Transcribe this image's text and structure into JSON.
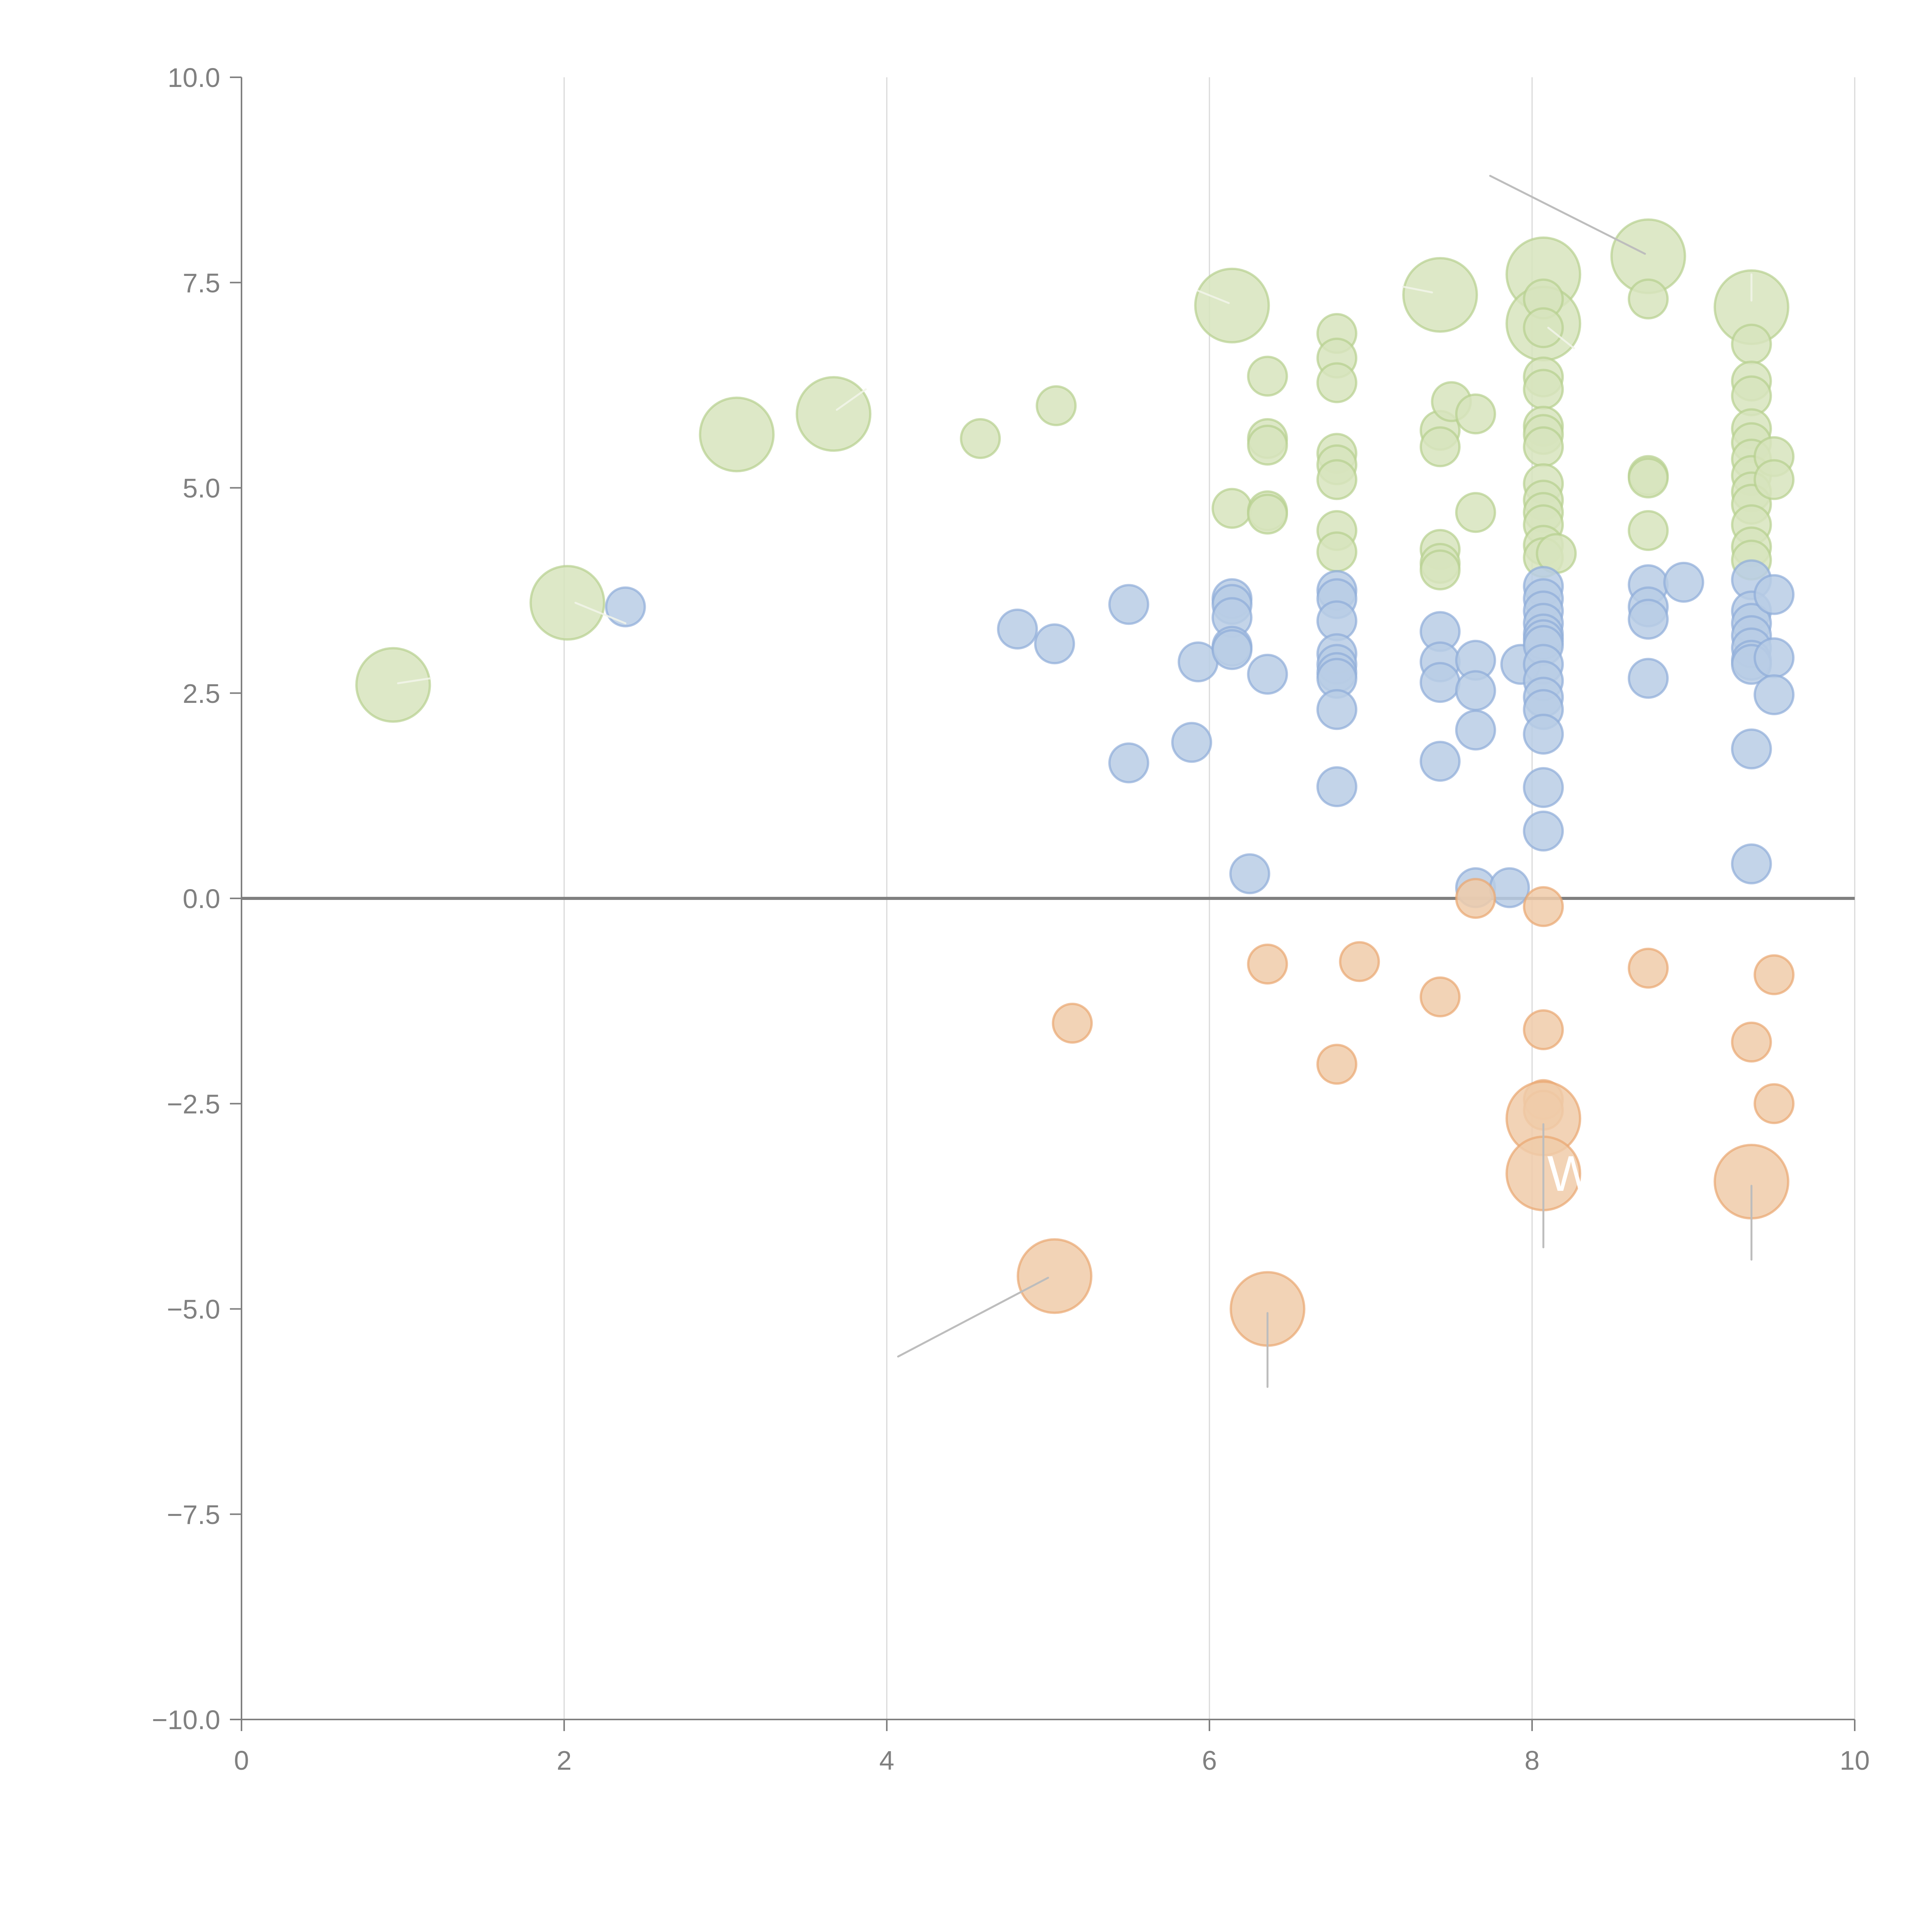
{
  "chart_data": {
    "type": "scatter",
    "subtype": "bubble",
    "title": "",
    "xlabel": "",
    "ylabel": "",
    "xlim": [
      0,
      10
    ],
    "ylim": [
      -10,
      10
    ],
    "x_ticks": [
      "0",
      "2",
      "4",
      "6",
      "8",
      "10"
    ],
    "y_ticks": [
      "10.0",
      "7.5",
      "5.0",
      "2.5",
      "0.0",
      "−2.5",
      "−5.0",
      "−7.5",
      "−10.0"
    ],
    "x_tick_values": [
      0,
      2,
      4,
      6,
      8,
      10
    ],
    "y_tick_values": [
      10,
      7.5,
      5,
      2.5,
      0,
      -2.5,
      -5,
      -7.5,
      -10
    ],
    "grid": "vertical",
    "zero_line": true,
    "legend": "none",
    "series": [
      {
        "name": "green",
        "color": "#9bbb59",
        "points": [
          {
            "x": 0.94,
            "y": 2.6,
            "size": "large"
          },
          {
            "x": 2.02,
            "y": 3.6,
            "size": "large"
          },
          {
            "x": 3.07,
            "y": 5.65,
            "size": "large"
          },
          {
            "x": 3.67,
            "y": 5.9,
            "size": "large"
          },
          {
            "x": 4.58,
            "y": 5.6,
            "size": "small"
          },
          {
            "x": 5.05,
            "y": 6.0,
            "size": "small"
          },
          {
            "x": 6.14,
            "y": 7.22,
            "size": "large"
          },
          {
            "x": 6.14,
            "y": 4.75,
            "size": "small"
          },
          {
            "x": 6.36,
            "y": 6.36,
            "size": "small"
          },
          {
            "x": 6.36,
            "y": 5.6,
            "size": "small"
          },
          {
            "x": 6.36,
            "y": 5.52,
            "size": "small"
          },
          {
            "x": 6.36,
            "y": 4.72,
            "size": "small"
          },
          {
            "x": 6.36,
            "y": 4.68,
            "size": "small"
          },
          {
            "x": 6.79,
            "y": 6.88,
            "size": "small"
          },
          {
            "x": 6.79,
            "y": 6.58,
            "size": "small"
          },
          {
            "x": 6.79,
            "y": 6.28,
            "size": "small"
          },
          {
            "x": 6.79,
            "y": 5.42,
            "size": "small"
          },
          {
            "x": 6.79,
            "y": 5.28,
            "size": "small"
          },
          {
            "x": 6.79,
            "y": 5.1,
            "size": "small"
          },
          {
            "x": 6.79,
            "y": 4.48,
            "size": "small"
          },
          {
            "x": 6.79,
            "y": 4.22,
            "size": "small"
          },
          {
            "x": 7.43,
            "y": 7.35,
            "size": "large"
          },
          {
            "x": 7.43,
            "y": 5.7,
            "size": "small"
          },
          {
            "x": 7.43,
            "y": 5.5,
            "size": "small"
          },
          {
            "x": 7.43,
            "y": 4.25,
            "size": "small"
          },
          {
            "x": 7.43,
            "y": 4.08,
            "size": "small"
          },
          {
            "x": 7.43,
            "y": 4.0,
            "size": "small"
          },
          {
            "x": 7.5,
            "y": 6.05,
            "size": "small"
          },
          {
            "x": 7.65,
            "y": 5.9,
            "size": "small"
          },
          {
            "x": 7.65,
            "y": 4.7,
            "size": "small"
          },
          {
            "x": 8.07,
            "y": 7.6,
            "size": "large"
          },
          {
            "x": 8.07,
            "y": 7.0,
            "size": "large"
          },
          {
            "x": 8.07,
            "y": 7.3,
            "size": "small"
          },
          {
            "x": 8.07,
            "y": 6.95,
            "size": "small"
          },
          {
            "x": 8.07,
            "y": 6.35,
            "size": "small"
          },
          {
            "x": 8.07,
            "y": 6.2,
            "size": "small"
          },
          {
            "x": 8.07,
            "y": 5.75,
            "size": "small"
          },
          {
            "x": 8.07,
            "y": 5.65,
            "size": "small"
          },
          {
            "x": 8.07,
            "y": 5.5,
            "size": "small"
          },
          {
            "x": 8.07,
            "y": 5.05,
            "size": "small"
          },
          {
            "x": 8.07,
            "y": 4.85,
            "size": "small"
          },
          {
            "x": 8.07,
            "y": 4.7,
            "size": "small"
          },
          {
            "x": 8.07,
            "y": 4.55,
            "size": "small"
          },
          {
            "x": 8.07,
            "y": 4.3,
            "size": "small"
          },
          {
            "x": 8.07,
            "y": 4.15,
            "size": "small"
          },
          {
            "x": 8.15,
            "y": 4.2,
            "size": "small"
          },
          {
            "x": 8.72,
            "y": 7.82,
            "size": "large"
          },
          {
            "x": 8.72,
            "y": 7.3,
            "size": "small"
          },
          {
            "x": 8.72,
            "y": 5.15,
            "size": "small"
          },
          {
            "x": 8.72,
            "y": 5.12,
            "size": "small"
          },
          {
            "x": 8.72,
            "y": 4.48,
            "size": "small"
          },
          {
            "x": 9.36,
            "y": 7.2,
            "size": "large"
          },
          {
            "x": 9.36,
            "y": 6.75,
            "size": "small"
          },
          {
            "x": 9.36,
            "y": 6.3,
            "size": "small"
          },
          {
            "x": 9.36,
            "y": 6.12,
            "size": "small"
          },
          {
            "x": 9.36,
            "y": 5.72,
            "size": "small"
          },
          {
            "x": 9.36,
            "y": 5.55,
            "size": "small"
          },
          {
            "x": 9.36,
            "y": 5.35,
            "size": "small"
          },
          {
            "x": 9.36,
            "y": 5.15,
            "size": "small"
          },
          {
            "x": 9.36,
            "y": 4.95,
            "size": "small"
          },
          {
            "x": 9.36,
            "y": 4.8,
            "size": "small"
          },
          {
            "x": 9.36,
            "y": 4.55,
            "size": "small"
          },
          {
            "x": 9.36,
            "y": 4.28,
            "size": "small"
          },
          {
            "x": 9.36,
            "y": 4.12,
            "size": "small"
          },
          {
            "x": 9.5,
            "y": 5.38,
            "size": "small"
          },
          {
            "x": 9.5,
            "y": 5.1,
            "size": "small"
          }
        ]
      },
      {
        "name": "blue",
        "color": "#4f81bd",
        "points": [
          {
            "x": 2.38,
            "y": 3.55,
            "size": "small"
          },
          {
            "x": 4.81,
            "y": 3.28,
            "size": "small"
          },
          {
            "x": 5.04,
            "y": 3.1,
            "size": "small"
          },
          {
            "x": 5.5,
            "y": 3.58,
            "size": "small"
          },
          {
            "x": 5.5,
            "y": 1.65,
            "size": "small"
          },
          {
            "x": 5.89,
            "y": 1.9,
            "size": "small"
          },
          {
            "x": 5.93,
            "y": 2.88,
            "size": "small"
          },
          {
            "x": 6.14,
            "y": 3.65,
            "size": "small"
          },
          {
            "x": 6.14,
            "y": 3.58,
            "size": "small"
          },
          {
            "x": 6.14,
            "y": 3.42,
            "size": "small"
          },
          {
            "x": 6.14,
            "y": 3.07,
            "size": "small"
          },
          {
            "x": 6.14,
            "y": 3.03,
            "size": "small"
          },
          {
            "x": 6.25,
            "y": 0.3,
            "size": "small"
          },
          {
            "x": 6.36,
            "y": 2.73,
            "size": "small"
          },
          {
            "x": 6.79,
            "y": 3.75,
            "size": "small"
          },
          {
            "x": 6.79,
            "y": 3.65,
            "size": "small"
          },
          {
            "x": 6.79,
            "y": 3.38,
            "size": "small"
          },
          {
            "x": 6.79,
            "y": 2.98,
            "size": "small"
          },
          {
            "x": 6.79,
            "y": 2.85,
            "size": "small"
          },
          {
            "x": 6.79,
            "y": 2.75,
            "size": "small"
          },
          {
            "x": 6.79,
            "y": 2.68,
            "size": "small"
          },
          {
            "x": 6.79,
            "y": 2.3,
            "size": "small"
          },
          {
            "x": 6.79,
            "y": 1.36,
            "size": "small"
          },
          {
            "x": 7.43,
            "y": 3.25,
            "size": "small"
          },
          {
            "x": 7.43,
            "y": 2.88,
            "size": "small"
          },
          {
            "x": 7.43,
            "y": 2.63,
            "size": "small"
          },
          {
            "x": 7.43,
            "y": 1.67,
            "size": "small"
          },
          {
            "x": 7.65,
            "y": 2.9,
            "size": "small"
          },
          {
            "x": 7.65,
            "y": 2.53,
            "size": "small"
          },
          {
            "x": 7.65,
            "y": 2.05,
            "size": "small"
          },
          {
            "x": 7.65,
            "y": 0.13,
            "size": "small"
          },
          {
            "x": 7.86,
            "y": 0.13,
            "size": "small"
          },
          {
            "x": 7.93,
            "y": 2.85,
            "size": "small"
          },
          {
            "x": 8.07,
            "y": 3.8,
            "size": "small"
          },
          {
            "x": 8.07,
            "y": 3.65,
            "size": "small"
          },
          {
            "x": 8.07,
            "y": 3.5,
            "size": "small"
          },
          {
            "x": 8.07,
            "y": 3.35,
            "size": "small"
          },
          {
            "x": 8.07,
            "y": 3.22,
            "size": "small"
          },
          {
            "x": 8.07,
            "y": 3.15,
            "size": "small"
          },
          {
            "x": 8.07,
            "y": 3.08,
            "size": "small"
          },
          {
            "x": 8.07,
            "y": 2.85,
            "size": "small"
          },
          {
            "x": 8.07,
            "y": 2.65,
            "size": "small"
          },
          {
            "x": 8.07,
            "y": 2.45,
            "size": "small"
          },
          {
            "x": 8.07,
            "y": 2.3,
            "size": "small"
          },
          {
            "x": 8.07,
            "y": 2.0,
            "size": "small"
          },
          {
            "x": 8.07,
            "y": 1.35,
            "size": "small"
          },
          {
            "x": 8.07,
            "y": 0.82,
            "size": "small"
          },
          {
            "x": 8.72,
            "y": 3.82,
            "size": "small"
          },
          {
            "x": 8.72,
            "y": 3.55,
            "size": "small"
          },
          {
            "x": 8.72,
            "y": 3.4,
            "size": "small"
          },
          {
            "x": 8.72,
            "y": 2.68,
            "size": "small"
          },
          {
            "x": 8.94,
            "y": 3.85,
            "size": "small"
          },
          {
            "x": 9.36,
            "y": 3.88,
            "size": "small"
          },
          {
            "x": 9.36,
            "y": 3.5,
            "size": "small"
          },
          {
            "x": 9.36,
            "y": 3.35,
            "size": "small"
          },
          {
            "x": 9.36,
            "y": 3.2,
            "size": "small"
          },
          {
            "x": 9.36,
            "y": 3.05,
            "size": "small"
          },
          {
            "x": 9.36,
            "y": 2.9,
            "size": "small"
          },
          {
            "x": 9.36,
            "y": 2.85,
            "size": "small"
          },
          {
            "x": 9.36,
            "y": 1.82,
            "size": "small"
          },
          {
            "x": 9.36,
            "y": 0.42,
            "size": "small"
          },
          {
            "x": 9.5,
            "y": 3.7,
            "size": "small"
          },
          {
            "x": 9.5,
            "y": 2.93,
            "size": "small"
          },
          {
            "x": 9.5,
            "y": 2.48,
            "size": "small"
          }
        ]
      },
      {
        "name": "orange",
        "color": "#f79646",
        "points": [
          {
            "x": 5.04,
            "y": -4.6,
            "size": "large"
          },
          {
            "x": 5.15,
            "y": -1.52,
            "size": "small"
          },
          {
            "x": 6.36,
            "y": -0.8,
            "size": "small"
          },
          {
            "x": 6.36,
            "y": -5.0,
            "size": "large"
          },
          {
            "x": 6.79,
            "y": -2.02,
            "size": "small"
          },
          {
            "x": 6.93,
            "y": -0.77,
            "size": "small"
          },
          {
            "x": 7.43,
            "y": -1.2,
            "size": "small"
          },
          {
            "x": 7.65,
            "y": 0.0,
            "size": "small"
          },
          {
            "x": 8.07,
            "y": -0.1,
            "size": "small"
          },
          {
            "x": 8.07,
            "y": -1.6,
            "size": "small"
          },
          {
            "x": 8.07,
            "y": -2.45,
            "size": "small"
          },
          {
            "x": 8.07,
            "y": -2.58,
            "size": "small"
          },
          {
            "x": 8.07,
            "y": -2.68,
            "size": "large"
          },
          {
            "x": 8.07,
            "y": -3.35,
            "size": "large"
          },
          {
            "x": 8.72,
            "y": -0.85,
            "size": "small"
          },
          {
            "x": 9.36,
            "y": -1.75,
            "size": "small"
          },
          {
            "x": 9.36,
            "y": -3.45,
            "size": "large"
          },
          {
            "x": 9.5,
            "y": -0.93,
            "size": "small"
          },
          {
            "x": 9.5,
            "y": -2.5,
            "size": "small"
          }
        ]
      }
    ],
    "annotations": [
      {
        "text": "W",
        "x": 8.07,
        "y": -3.35,
        "color": "#ffffff"
      }
    ],
    "leader_lines": [
      {
        "from": [
          7.74,
          8.8
        ],
        "to": [
          8.7,
          7.85
        ],
        "style": "gray"
      },
      {
        "from": [
          4.07,
          -5.58
        ],
        "to": [
          5.0,
          -4.62
        ],
        "style": "gray"
      },
      {
        "from": [
          6.36,
          -5.95
        ],
        "to": [
          6.36,
          -5.05
        ],
        "style": "gray"
      },
      {
        "from": [
          8.07,
          -4.25
        ],
        "to": [
          8.07,
          -2.75
        ],
        "style": "gray"
      },
      {
        "from": [
          9.36,
          -4.4
        ],
        "to": [
          9.36,
          -3.5
        ],
        "style": "gray"
      },
      {
        "from": [
          0.97,
          2.62
        ],
        "to": [
          1.17,
          2.68
        ],
        "style": "light"
      },
      {
        "from": [
          2.07,
          3.6
        ],
        "to": [
          2.38,
          3.35
        ],
        "style": "light"
      },
      {
        "from": [
          3.69,
          5.95
        ],
        "to": [
          3.87,
          6.2
        ],
        "style": "light"
      },
      {
        "from": [
          5.93,
          7.4
        ],
        "to": [
          6.12,
          7.25
        ],
        "style": "light"
      },
      {
        "from": [
          7.2,
          7.45
        ],
        "to": [
          7.38,
          7.38
        ],
        "style": "light"
      },
      {
        "from": [
          8.1,
          6.95
        ],
        "to": [
          8.26,
          6.7
        ],
        "style": "light"
      },
      {
        "from": [
          9.36,
          7.6
        ],
        "to": [
          9.36,
          7.28
        ],
        "style": "light"
      }
    ]
  }
}
